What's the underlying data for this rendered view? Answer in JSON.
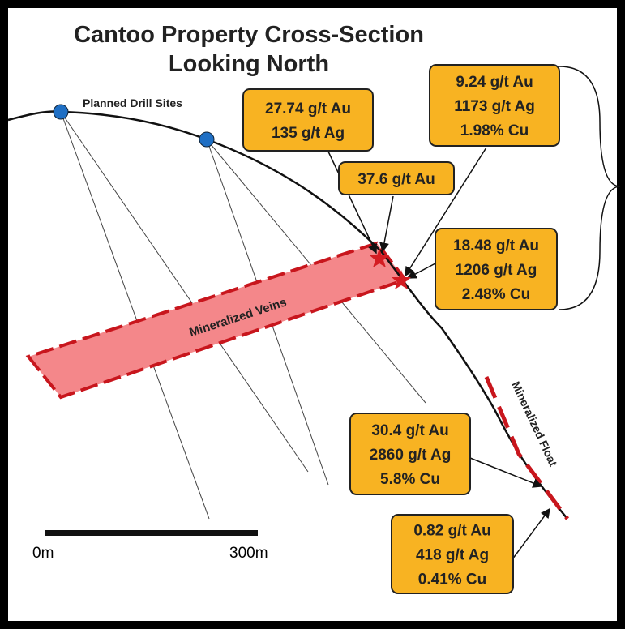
{
  "header": {
    "title": [
      "Cantoo Property Cross-Section",
      "Looking North"
    ]
  },
  "labels": {
    "drill_sites": "Planned Drill Sites",
    "veins": "Mineralized Veins",
    "float": "Mineralized Float"
  },
  "assays": [
    {
      "lines": [
        "27.74 g/t Au",
        "135 g/t Ag"
      ]
    },
    {
      "lines": [
        "9.24 g/t Au",
        "1173 g/t Ag",
        "1.98% Cu"
      ]
    },
    {
      "lines": [
        "37.6 g/t Au"
      ]
    },
    {
      "lines": [
        "18.48 g/t Au",
        "1206 g/t Ag",
        "2.48% Cu"
      ]
    },
    {
      "lines": [
        "30.4 g/t Au",
        "2860 g/t Ag",
        "5.8% Cu"
      ]
    },
    {
      "lines": [
        "0.82 g/t Au",
        "418 g/t Ag",
        "0.41% Cu"
      ]
    }
  ],
  "scale": {
    "start": "0m",
    "end": "300m"
  }
}
